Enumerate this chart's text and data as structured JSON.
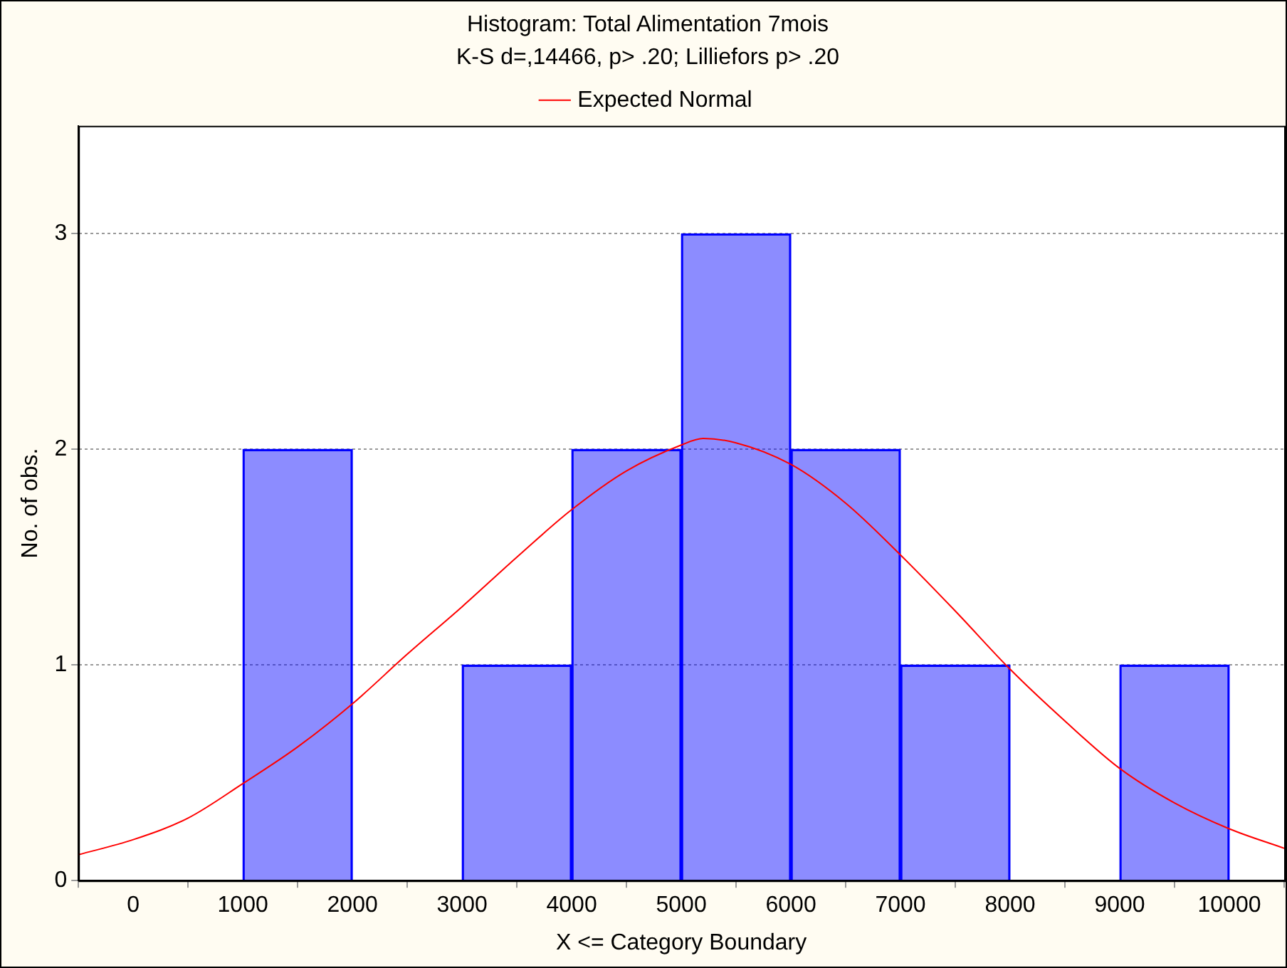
{
  "chart_data": {
    "type": "histogram",
    "title": "Histogram: Total Alimentation 7mois",
    "subtitle": "K-S d=,14466, p> .20; Lilliefors p> .20",
    "xlabel": "X <= Category Boundary",
    "ylabel": "No. of obs.",
    "xlim": [
      -500,
      10500
    ],
    "xticks": [
      0,
      1000,
      2000,
      3000,
      4000,
      5000,
      6000,
      7000,
      8000,
      9000,
      10000
    ],
    "ylim": [
      0,
      3.5
    ],
    "yticks": [
      0,
      1,
      2,
      3
    ],
    "grid": "y",
    "legend": "top",
    "color": "#0000ff",
    "bins": [
      1000,
      2000,
      3000,
      4000,
      5000,
      6000,
      7000,
      8000,
      9000,
      10000
    ],
    "values": [
      2,
      0,
      1,
      2,
      3,
      2,
      1,
      0,
      1
    ],
    "series": [
      {
        "type": "line",
        "name": "Expected Normal",
        "color": "#ff0000",
        "marker": "none",
        "x": [
          -500,
          0,
          500,
          1000,
          1500,
          2000,
          2500,
          3000,
          3500,
          4000,
          4500,
          5000,
          5200,
          5500,
          6000,
          6500,
          7000,
          7500,
          8000,
          8500,
          9000,
          9500,
          10000,
          10500
        ],
        "values": [
          0.12,
          0.19,
          0.29,
          0.45,
          0.62,
          0.82,
          1.05,
          1.27,
          1.5,
          1.72,
          1.9,
          2.02,
          2.05,
          2.03,
          1.93,
          1.75,
          1.51,
          1.25,
          0.98,
          0.74,
          0.52,
          0.36,
          0.24,
          0.15
        ]
      }
    ]
  }
}
